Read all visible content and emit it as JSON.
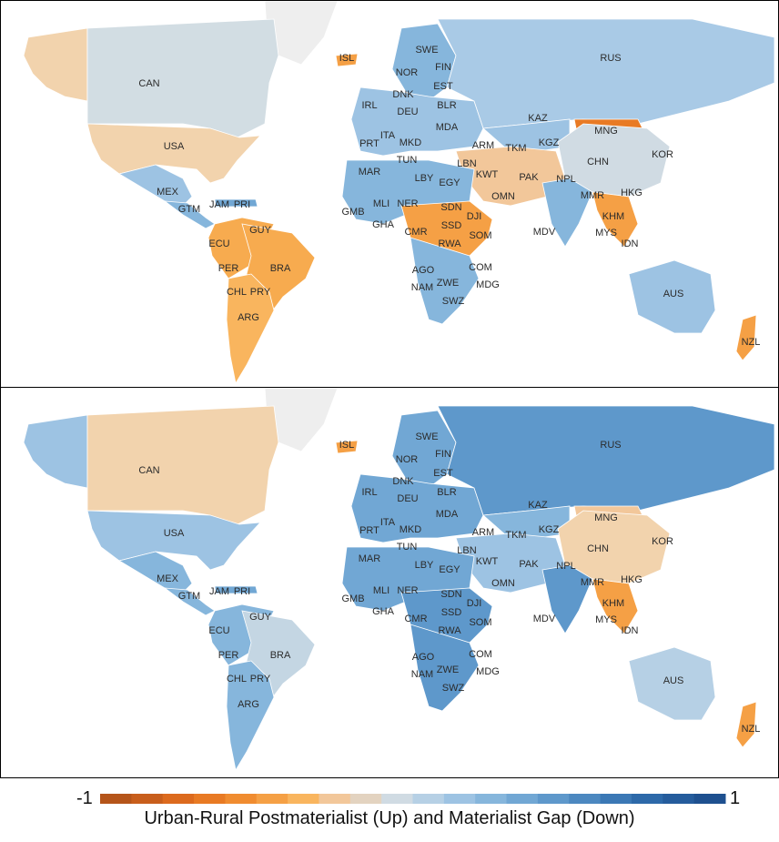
{
  "legend": {
    "min_label": "-1",
    "max_label": "1",
    "title": "Urban-Rural Postmaterialist (Up) and Materialist Gap (Down)",
    "colors": [
      "#b5551a",
      "#c85e1c",
      "#dc6a1e",
      "#e87a24",
      "#f08c30",
      "#f5a045",
      "#f9b55e",
      "#f2c79a",
      "#e3d3c0",
      "#d0dbe3",
      "#b6d0e5",
      "#9dc3e3",
      "#86b6dc",
      "#71a7d4",
      "#5e98cb",
      "#4c88c0",
      "#3b78b5",
      "#2d69a9",
      "#255c9c",
      "#1e508f"
    ]
  },
  "scale": {
    "min": -1,
    "max": 1
  },
  "maps": [
    {
      "name": "Urban-Rural Postmaterialist Gap",
      "colors": {
        "CAN": "#d2dde3",
        "USA": "#f2d3ad",
        "ALASKA": "#f2d3ad",
        "GREENLAND": "#eeeeee",
        "MEX": "#9dc3e3",
        "CENTAM": "#86b6dc",
        "CARIB": "#71a7d4",
        "SAM_N": "#f7ab4f",
        "BRA": "#f7ab4f",
        "SAM_S": "#f9b55e",
        "RUS": "#a9cae6",
        "CHN": "#d0dbe3",
        "MNG": "#e87a24",
        "KAZ": "#9dc3e3",
        "IND": "#86b6dc",
        "MIDEAST": "#f2c79a",
        "SEASIA": "#f5a045",
        "EUR": "#9dc3e3",
        "NAFR": "#86b6dc",
        "EAFR": "#f5a045",
        "SAFR": "#86b6dc",
        "AUS": "#9dc3e3",
        "NZL": "#f5a045",
        "ISL": "#f5a045",
        "SCAN": "#86b6dc"
      }
    },
    {
      "name": "Urban-Rural Materialist Gap",
      "colors": {
        "CAN": "#f2d3ad",
        "USA": "#9dc3e3",
        "ALASKA": "#9dc3e3",
        "GREENLAND": "#eeeeee",
        "MEX": "#86b6dc",
        "CENTAM": "#86b6dc",
        "CARIB": "#71a7d4",
        "SAM_N": "#86b6dc",
        "BRA": "#c4d6e3",
        "SAM_S": "#86b6dc",
        "RUS": "#5e98cb",
        "CHN": "#f2d3ad",
        "MNG": "#f2c79a",
        "KAZ": "#86b6dc",
        "IND": "#5e98cb",
        "MIDEAST": "#9dc3e3",
        "SEASIA": "#f5a045",
        "EUR": "#71a7d4",
        "NAFR": "#71a7d4",
        "EAFR": "#5e98cb",
        "SAFR": "#5e98cb",
        "AUS": "#b6d0e5",
        "NZL": "#f5a045",
        "ISL": "#f5a045",
        "SCAN": "#71a7d4"
      }
    }
  ],
  "labels": [
    {
      "code": "CAN",
      "t": 0
    },
    {
      "code": "USA",
      "t": 0
    },
    {
      "code": "MEX",
      "t": 0
    },
    {
      "code": "GTM",
      "t": 0
    },
    {
      "code": "JAM",
      "t": 0
    },
    {
      "code": "PRI",
      "t": 0
    },
    {
      "code": "GUY",
      "t": 0
    },
    {
      "code": "ECU",
      "t": 0
    },
    {
      "code": "PER",
      "t": 0
    },
    {
      "code": "BRA",
      "t": 0
    },
    {
      "code": "CHL",
      "t": 0
    },
    {
      "code": "PRY",
      "t": 0
    },
    {
      "code": "ARG",
      "t": 0
    },
    {
      "code": "ISL",
      "t": 0
    },
    {
      "code": "SWE",
      "t": 0
    },
    {
      "code": "FIN",
      "t": 0
    },
    {
      "code": "NOR",
      "t": 0
    },
    {
      "code": "EST",
      "t": 0
    },
    {
      "code": "DNK",
      "t": 0
    },
    {
      "code": "BLR",
      "t": 0
    },
    {
      "code": "IRL",
      "t": 0
    },
    {
      "code": "DEU",
      "t": 0
    },
    {
      "code": "MDA",
      "t": 0
    },
    {
      "code": "ITA",
      "t": 0
    },
    {
      "code": "MKD",
      "t": 0
    },
    {
      "code": "PRT",
      "t": 0
    },
    {
      "code": "TUN",
      "t": 0
    },
    {
      "code": "ARM",
      "t": 0
    },
    {
      "code": "TKM",
      "t": 0
    },
    {
      "code": "KGZ",
      "t": 0
    },
    {
      "code": "KAZ",
      "t": 0
    },
    {
      "code": "MNG",
      "t": 0
    },
    {
      "code": "RUS",
      "t": 0
    },
    {
      "code": "CHN",
      "t": 0
    },
    {
      "code": "KOR",
      "t": 0
    },
    {
      "code": "MAR",
      "t": 0
    },
    {
      "code": "LBY",
      "t": 0
    },
    {
      "code": "EGY",
      "t": 0
    },
    {
      "code": "LBN",
      "t": 0
    },
    {
      "code": "KWT",
      "t": 0
    },
    {
      "code": "PAK",
      "t": 0
    },
    {
      "code": "NPL",
      "t": 0
    },
    {
      "code": "OMN",
      "t": 0
    },
    {
      "code": "MLI",
      "t": 0
    },
    {
      "code": "NER",
      "t": 0
    },
    {
      "code": "SDN",
      "t": 0
    },
    {
      "code": "DJI",
      "t": 0
    },
    {
      "code": "MMR",
      "t": 0
    },
    {
      "code": "HKG",
      "t": 0
    },
    {
      "code": "GMB",
      "t": 0
    },
    {
      "code": "GHA",
      "t": 0
    },
    {
      "code": "CMR",
      "t": 0
    },
    {
      "code": "SSD",
      "t": 0
    },
    {
      "code": "SOM",
      "t": 0
    },
    {
      "code": "KHM",
      "t": 0
    },
    {
      "code": "MDV",
      "t": 0
    },
    {
      "code": "MYS",
      "t": 0
    },
    {
      "code": "IDN",
      "t": 0
    },
    {
      "code": "RWA",
      "t": 0
    },
    {
      "code": "AGO",
      "t": 0
    },
    {
      "code": "COM",
      "t": 0
    },
    {
      "code": "NAM",
      "t": 0
    },
    {
      "code": "ZWE",
      "t": 0
    },
    {
      "code": "MDG",
      "t": 0
    },
    {
      "code": "SWZ",
      "t": 0
    },
    {
      "code": "AUS",
      "t": 0
    },
    {
      "code": "NZL",
      "t": 0
    }
  ]
}
